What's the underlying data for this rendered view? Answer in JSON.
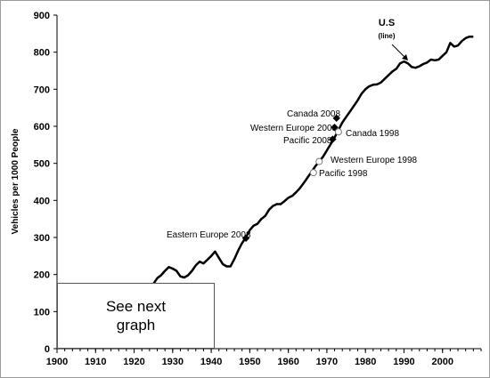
{
  "chart_data": {
    "type": "line",
    "title": "",
    "xlabel": "",
    "ylabel": "Vehicles per 1000 People",
    "xlim": [
      1900,
      2010
    ],
    "ylim": [
      0,
      900
    ],
    "x_ticks": [
      1900,
      1910,
      1920,
      1930,
      1940,
      1950,
      1960,
      1970,
      1980,
      1990,
      2000
    ],
    "x_tick_labels": [
      "1900",
      "1910",
      "1920",
      "1930",
      "1940",
      "1950",
      "1960",
      "1970",
      "1980",
      "1990",
      "2000"
    ],
    "y_ticks": [
      0,
      100,
      200,
      300,
      400,
      500,
      600,
      700,
      800,
      900
    ],
    "y_tick_labels": [
      "0",
      "100",
      "200",
      "300",
      "400",
      "500",
      "600",
      "700",
      "800",
      "900"
    ],
    "grid": false,
    "series": [
      {
        "name": "U.S",
        "x": [
          1925,
          1926,
          1927,
          1928,
          1929,
          1930,
          1931,
          1932,
          1933,
          1934,
          1935,
          1936,
          1937,
          1938,
          1939,
          1940,
          1941,
          1942,
          1943,
          1944,
          1945,
          1946,
          1947,
          1948,
          1949,
          1950,
          1951,
          1952,
          1953,
          1954,
          1955,
          1956,
          1957,
          1958,
          1959,
          1960,
          1961,
          1962,
          1963,
          1964,
          1965,
          1966,
          1967,
          1968,
          1969,
          1970,
          1971,
          1972,
          1973,
          1974,
          1975,
          1976,
          1977,
          1978,
          1979,
          1980,
          1981,
          1982,
          1983,
          1984,
          1985,
          1986,
          1987,
          1988,
          1989,
          1990,
          1991,
          1992,
          1993,
          1994,
          1995,
          1996,
          1997,
          1998,
          1999,
          2000,
          2001,
          2002,
          2003,
          2004,
          2005,
          2006,
          2007,
          2008
        ],
        "values": [
          175,
          190,
          198,
          210,
          220,
          216,
          210,
          195,
          192,
          198,
          210,
          225,
          235,
          230,
          240,
          250,
          262,
          245,
          228,
          222,
          222,
          242,
          265,
          285,
          300,
          320,
          332,
          337,
          350,
          358,
          375,
          385,
          390,
          390,
          398,
          407,
          412,
          422,
          433,
          447,
          462,
          477,
          492,
          505,
          518,
          535,
          552,
          570,
          590,
          610,
          625,
          640,
          655,
          670,
          688,
          700,
          708,
          712,
          713,
          718,
          728,
          738,
          748,
          755,
          770,
          775,
          770,
          760,
          758,
          762,
          768,
          772,
          780,
          778,
          780,
          790,
          800,
          825,
          815,
          818,
          830,
          838,
          842,
          842
        ]
      }
    ],
    "annotations": [
      {
        "label": "U.S",
        "sublabel": "(line)",
        "x": 1989,
        "y": 778
      },
      {
        "label": "Canada 2008",
        "x": 1972.5,
        "y": 622,
        "marker": "filled"
      },
      {
        "label": "Western Europe 2008",
        "x": 1972,
        "y": 597,
        "marker": "filled"
      },
      {
        "label": "Canada 1998",
        "x": 1973,
        "y": 585,
        "marker": "open"
      },
      {
        "label": "Pacific 2008",
        "x": 1971.5,
        "y": 565,
        "marker": "filled"
      },
      {
        "label": "Western Europe 1998",
        "x": 1968,
        "y": 505,
        "marker": "open"
      },
      {
        "label": "Pacific 1998",
        "x": 1966.5,
        "y": 475,
        "marker": "open"
      },
      {
        "label": "Eastern Europe 2008",
        "x": 1949,
        "y": 298,
        "marker": "filled"
      }
    ],
    "note_box": "See next graph"
  }
}
